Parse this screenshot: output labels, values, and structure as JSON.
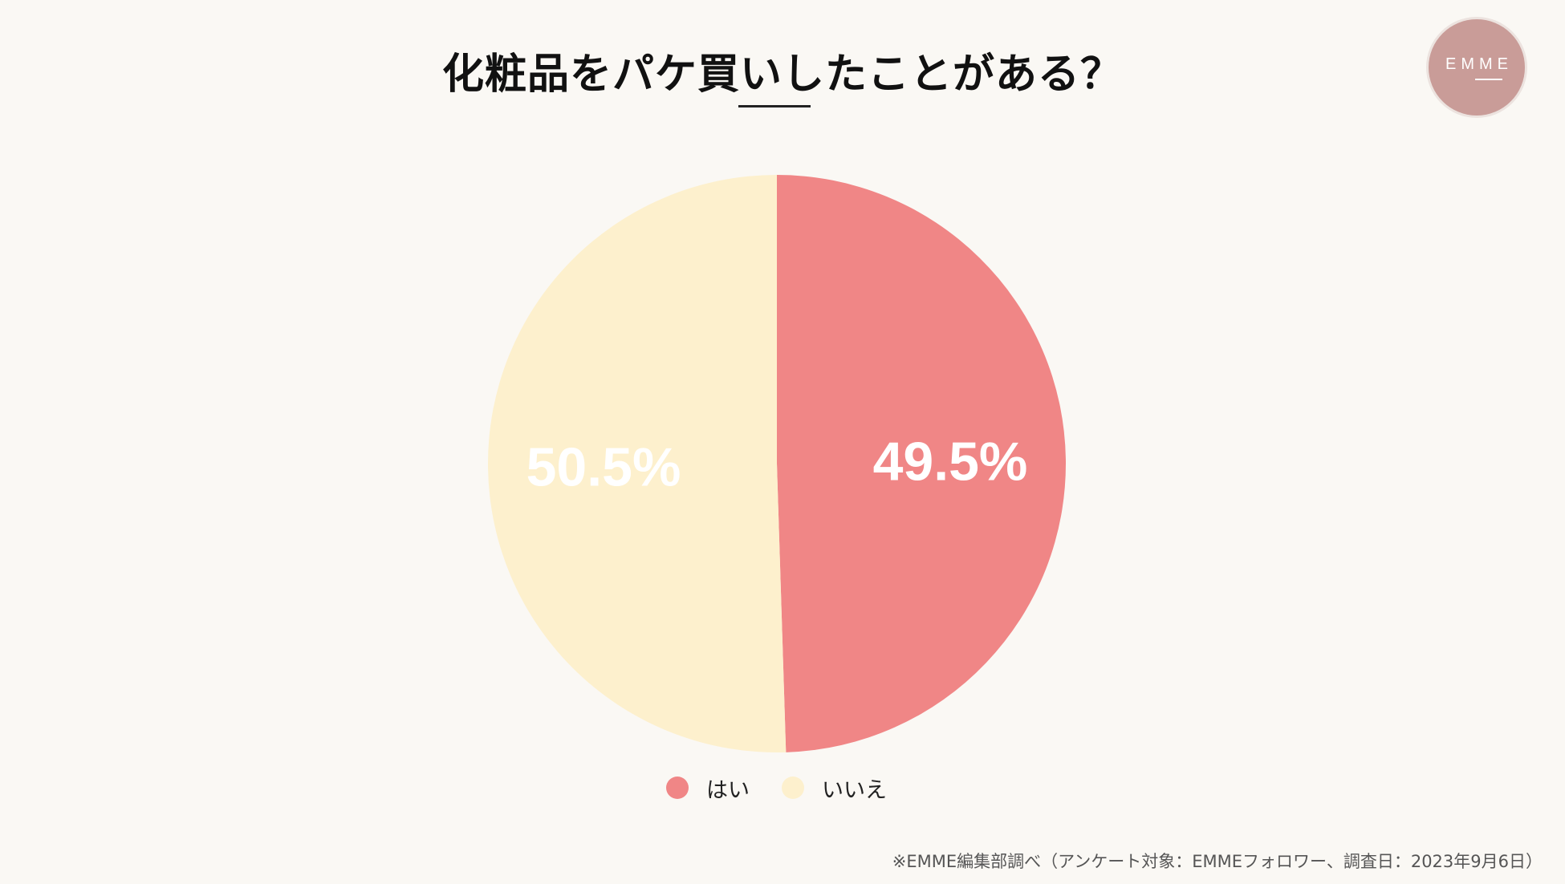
{
  "title": "化粧品をパケ買いしたことがある？",
  "logo": {
    "text": "EMME",
    "color": "#c99c98"
  },
  "chart_data": {
    "type": "pie",
    "categories": [
      "はい",
      "いいえ"
    ],
    "values": [
      49.5,
      50.5
    ],
    "labels": [
      "49.5%",
      "50.5%"
    ],
    "colors": [
      "#f08686",
      "#fdf0cd"
    ],
    "start_angle_deg": 0,
    "direction": "clockwise",
    "legend_position": "bottom"
  },
  "legend": [
    {
      "label": "はい",
      "color": "#f08686"
    },
    {
      "label": "いいえ",
      "color": "#fdf0cd"
    }
  ],
  "footnote": "※EMME編集部調べ（アンケート対象：EMMEフォロワー、調査日：2023年9月6日）"
}
